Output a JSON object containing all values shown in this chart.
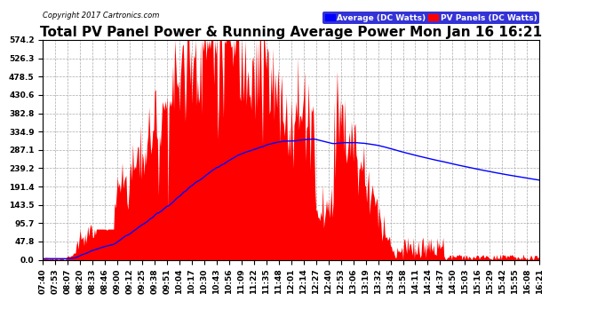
{
  "title": "Total PV Panel Power & Running Average Power Mon Jan 16 16:21",
  "copyright": "Copyright 2017 Cartronics.com",
  "ylabel_values": [
    0.0,
    47.8,
    95.7,
    143.5,
    191.4,
    239.2,
    287.1,
    334.9,
    382.8,
    430.6,
    478.5,
    526.3,
    574.2
  ],
  "ymax": 574.2,
  "legend_avg": "Average (DC Watts)",
  "legend_pv": "PV Panels (DC Watts)",
  "bg_color": "#ffffff",
  "pv_color": "#ff0000",
  "avg_color": "#0000ff",
  "grid_color": "#aaaaaa",
  "title_fontsize": 11,
  "tick_fontsize": 6.5,
  "copyright_fontsize": 6,
  "x_labels": [
    "07:40",
    "07:53",
    "08:07",
    "08:20",
    "08:33",
    "08:46",
    "09:00",
    "09:12",
    "09:25",
    "09:38",
    "09:51",
    "10:04",
    "10:17",
    "10:30",
    "10:43",
    "10:56",
    "11:09",
    "11:22",
    "11:35",
    "11:48",
    "12:01",
    "12:14",
    "12:27",
    "12:40",
    "12:53",
    "13:06",
    "13:19",
    "13:32",
    "13:45",
    "13:58",
    "14:11",
    "14:24",
    "14:37",
    "14:50",
    "15:03",
    "15:16",
    "15:29",
    "15:42",
    "15:55",
    "16:08",
    "16:21"
  ]
}
